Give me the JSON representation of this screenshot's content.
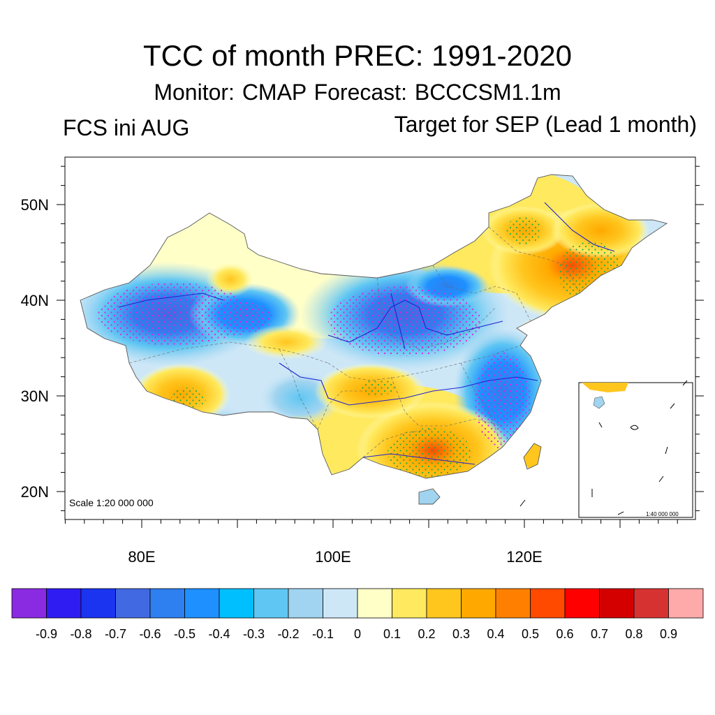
{
  "title": "TCC of month PREC: 1991-2020",
  "subtitle": "Monitor: CMAP   Forecast: BCCCSM1.1m",
  "left_label": "FCS ini AUG",
  "right_label": "Target for SEP (Lead 1 month)",
  "map": {
    "lat_ticks": [
      {
        "value": 20,
        "label": "20N"
      },
      {
        "value": 30,
        "label": "30N"
      },
      {
        "value": 40,
        "label": "40N"
      },
      {
        "value": 50,
        "label": "50N"
      }
    ],
    "lon_ticks": [
      {
        "value": 80,
        "label": "80E"
      },
      {
        "value": 100,
        "label": "100E"
      },
      {
        "value": 120,
        "label": "120E"
      }
    ],
    "lon_range": [
      72,
      138
    ],
    "lat_range": [
      17,
      55
    ],
    "scale_label": "Scale 1:20 000 000",
    "inset_scale_label": "1:40 000 000",
    "stippling": "green dots mark statistically significant correlation"
  },
  "colorbar": {
    "labels": [
      "-0.9",
      "-0.8",
      "-0.7",
      "-0.6",
      "-0.5",
      "-0.4",
      "-0.3",
      "-0.2",
      "-0.1",
      "0",
      "0.1",
      "0.2",
      "0.3",
      "0.4",
      "0.5",
      "0.6",
      "0.7",
      "0.8",
      "0.9"
    ],
    "colors": [
      "#8a2be2",
      "#2f1cf2",
      "#1a34f0",
      "#4169e1",
      "#2e7fef",
      "#1e90ff",
      "#00bfff",
      "#5fc6f3",
      "#a0d4f0",
      "#cde7f7",
      "#ffffc8",
      "#ffe95e",
      "#ffc61e",
      "#ffa900",
      "#ff8000",
      "#ff4a00",
      "#ff0000",
      "#d40000",
      "#d73232",
      "#ffaaaa"
    ]
  }
}
